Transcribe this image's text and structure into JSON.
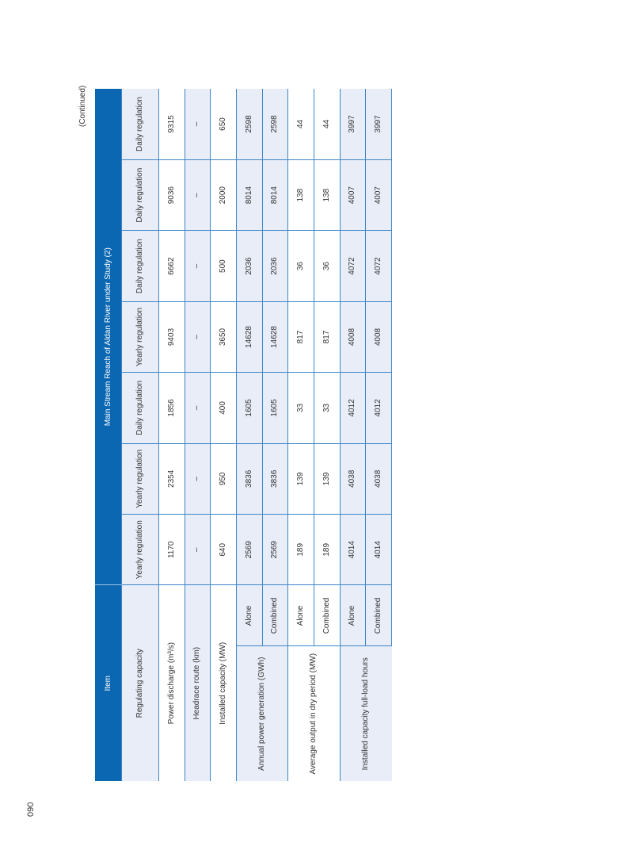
{
  "continued": "(Continued)",
  "page_number": "090",
  "table": {
    "header_item": "Item",
    "header_group": "Main Stream Reach of Aldan River under Study (2)",
    "regulating_label": "Regulating capacity",
    "regulating": [
      "Yearly regulation",
      "Yearly regulation",
      "Daily regulation",
      "Yearly regulation",
      "Daily regulation",
      "Daily regulation",
      "Daily regulation"
    ],
    "rows": [
      {
        "label": "Power discharge (m³/s)",
        "values": [
          "1170",
          "2354",
          "1856",
          "9403",
          "6662",
          "9036",
          "9315"
        ]
      },
      {
        "label": "Headrace route (km)",
        "values": [
          "–",
          "–",
          "–",
          "–",
          "–",
          "–",
          "–"
        ]
      },
      {
        "label": "Installed capacity (MW)",
        "values": [
          "640",
          "950",
          "400",
          "3650",
          "500",
          "2000",
          "650"
        ]
      }
    ],
    "groups": [
      {
        "label": "Annual power generation (GWh)",
        "sub": [
          {
            "label": "Alone",
            "values": [
              "2569",
              "3836",
              "1605",
              "14628",
              "2036",
              "8014",
              "2598"
            ]
          },
          {
            "label": "Combined",
            "values": [
              "2569",
              "3836",
              "1605",
              "14628",
              "2036",
              "8014",
              "2598"
            ]
          }
        ]
      },
      {
        "label": "Average output in dry period (MW)",
        "sub": [
          {
            "label": "Alone",
            "values": [
              "189",
              "139",
              "33",
              "817",
              "36",
              "138",
              "44"
            ]
          },
          {
            "label": "Combined",
            "values": [
              "189",
              "139",
              "33",
              "817",
              "36",
              "138",
              "44"
            ]
          }
        ]
      },
      {
        "label": "Installed capacity full-load hours",
        "sub": [
          {
            "label": "Alone",
            "values": [
              "4014",
              "4038",
              "4012",
              "4008",
              "4072",
              "4007",
              "3997"
            ]
          },
          {
            "label": "Combined",
            "values": [
              "4014",
              "4038",
              "4012",
              "4008",
              "4072",
              "4007",
              "3997"
            ]
          }
        ]
      }
    ]
  }
}
